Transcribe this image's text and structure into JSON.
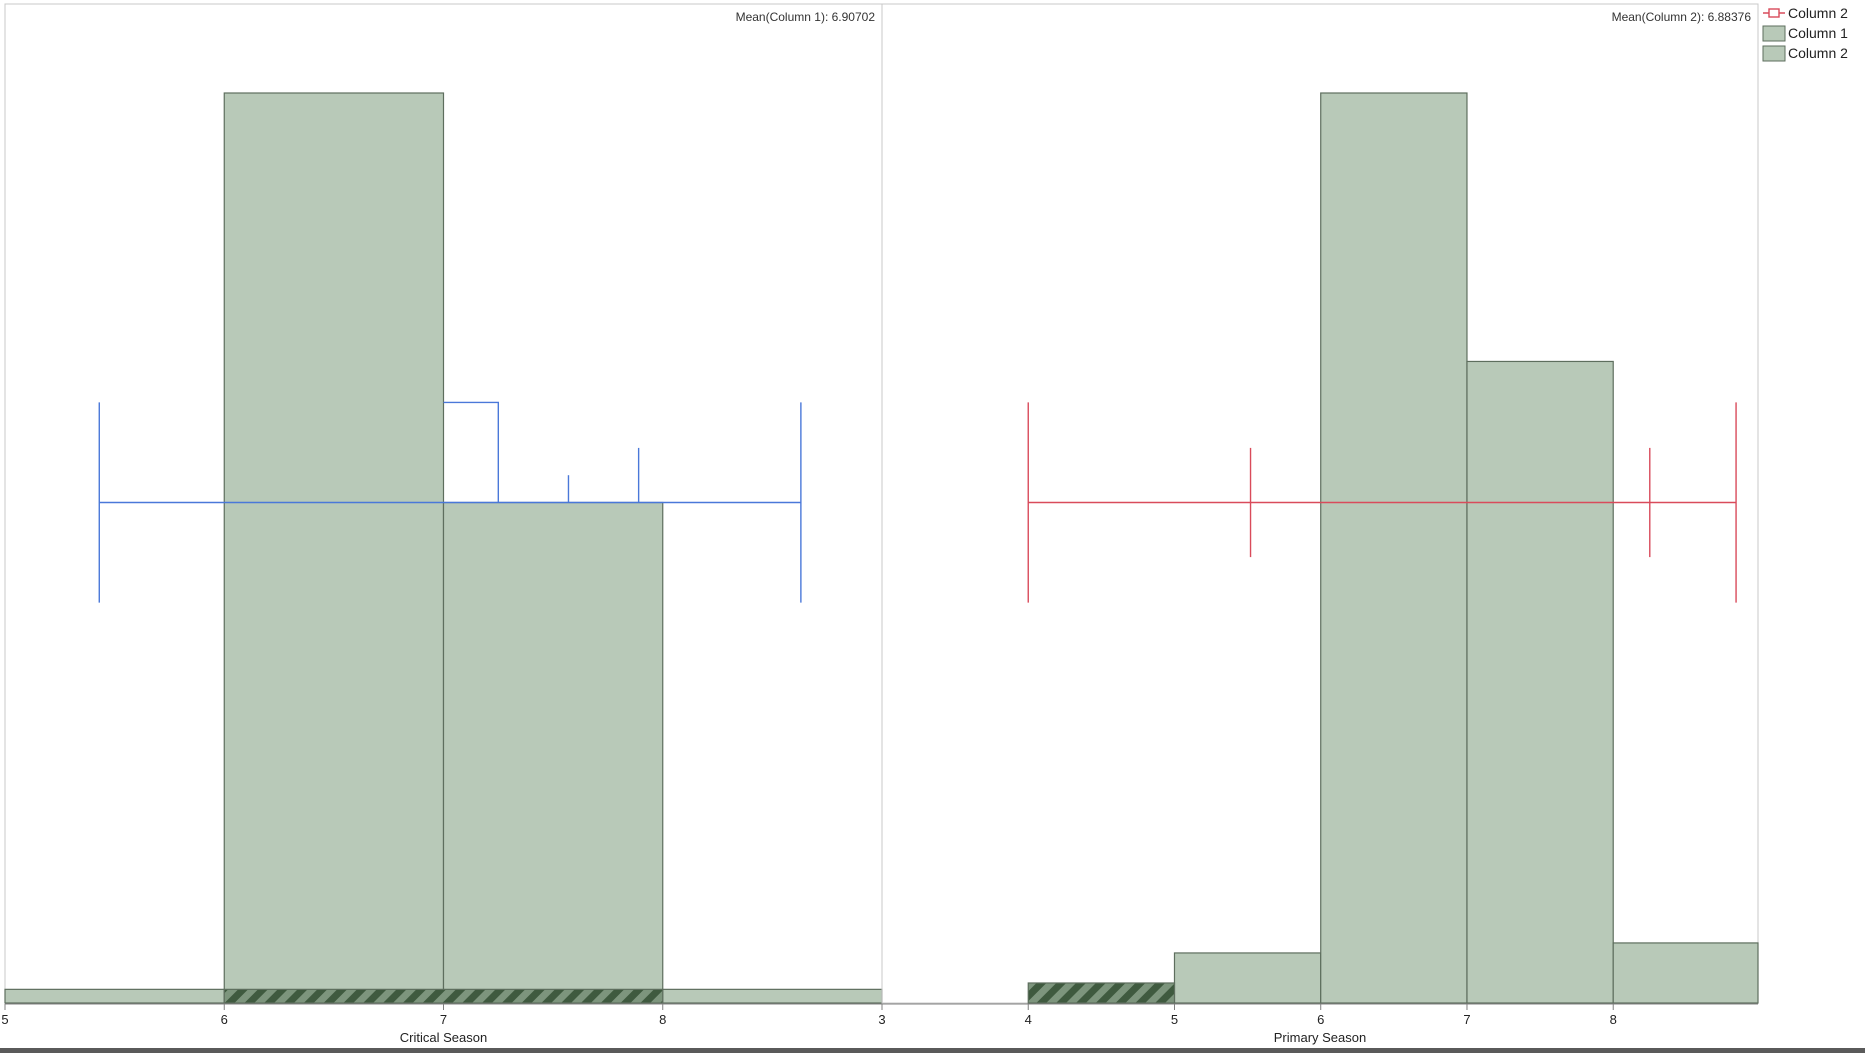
{
  "chart_data": [
    {
      "type": "bar",
      "title": "",
      "annotation": "Mean(Column 1): 6.90702",
      "xlabel": "Critical Season",
      "ylabel": "",
      "xlim": [
        5,
        9
      ],
      "x_tick_labels": [
        "5",
        "6",
        "7",
        "8",
        "3"
      ],
      "bins": [
        {
          "x0": 5,
          "x1": 6,
          "height": 0.015
        },
        {
          "x0": 6,
          "x1": 7,
          "height": 1.0
        },
        {
          "x0": 7,
          "x1": 8,
          "height": 0.55
        },
        {
          "x0": 8,
          "x1": 9,
          "height": 0.015
        }
      ],
      "highlight": [
        {
          "x0": 6,
          "x1": 8,
          "height": 0.015
        }
      ],
      "whisker": {
        "color": "#4a78d9",
        "min": 5.43,
        "max": 8.63,
        "center_height": 0.55,
        "box_x0": 7.0,
        "box_x1": 7.25,
        "box_top": 0.66,
        "ticks": [
          {
            "x": 7.57,
            "top": 0.58
          },
          {
            "x": 7.89,
            "top": 0.61
          }
        ]
      }
    },
    {
      "type": "bar",
      "title": "",
      "annotation": "Mean(Column 2): 6.88376",
      "xlabel": "Primary Season",
      "ylabel": "",
      "xlim": [
        3,
        8.99
      ],
      "x_tick_labels": [
        "4",
        "5",
        "6",
        "7",
        "8"
      ],
      "bins": [
        {
          "x0": 5,
          "x1": 6,
          "height": 0.055
        },
        {
          "x0": 6,
          "x1": 7,
          "height": 1.0
        },
        {
          "x0": 7,
          "x1": 8,
          "height": 0.705
        },
        {
          "x0": 8,
          "x1": 8.99,
          "height": 0.066
        }
      ],
      "highlight": [
        {
          "x0": 4,
          "x1": 5,
          "height": 0.022
        }
      ],
      "whisker": {
        "color": "#d94b5b",
        "min": 4.0,
        "max": 8.84,
        "center_height": 0.55,
        "ticks": [
          {
            "x": 5.52,
            "top": 0.61
          },
          {
            "x": 8.25,
            "top": 0.61
          }
        ]
      }
    }
  ],
  "legend": {
    "position": "top-right",
    "items": [
      {
        "label": "Column 2",
        "kind": "outline",
        "color": "#d94b5b"
      },
      {
        "label": "Column 1",
        "kind": "fill",
        "color": "#b8c9b8"
      },
      {
        "label": "Column 2",
        "kind": "fill",
        "color": "#b8c9b8"
      }
    ]
  },
  "colors": {
    "bar_fill": "#b8c9b8",
    "bar_stroke": "#5e6e5e",
    "hatch_dark": "#3f5a3f",
    "hatch_light": "#7d957d",
    "frame": "#c8c8c8"
  }
}
